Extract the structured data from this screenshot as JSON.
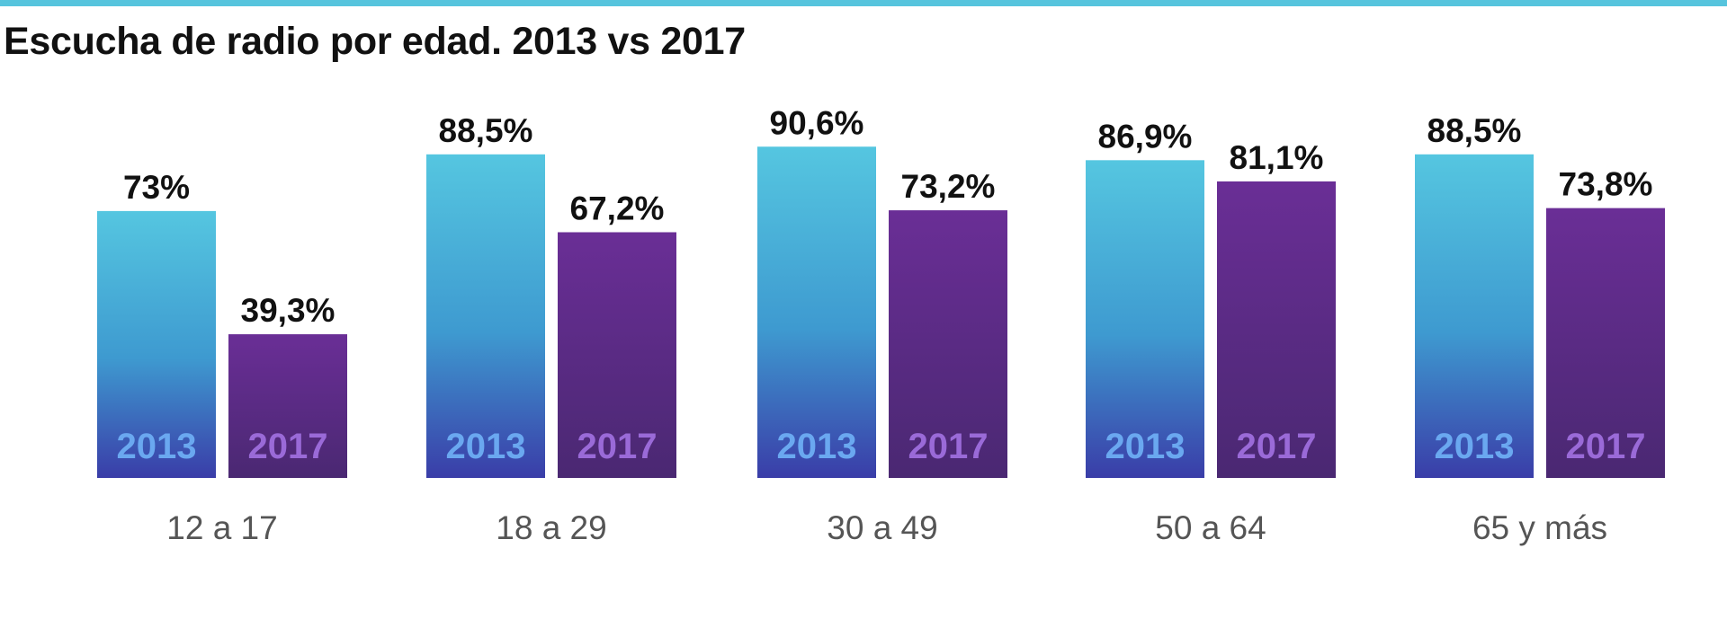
{
  "colors": {
    "accent_rule": "#56c4dd",
    "series_2013_top": "#55c6e0",
    "series_2013_bottom": "#3a3da8",
    "series_2013_label": "#6aa8f0",
    "series_2017_top": "#6a2e96",
    "series_2017_bottom": "#4a2872",
    "series_2017_label": "#9a6ad8"
  },
  "chart_data": {
    "type": "bar",
    "title": "Escucha de radio por edad. 2013 vs 2017",
    "categories": [
      "12 a 17",
      "18 a 29",
      "30 a 49",
      "50 a 64",
      "65 y más"
    ],
    "series": [
      {
        "name": "2013",
        "values": [
          73,
          88.5,
          90.6,
          86.9,
          88.5
        ],
        "labels": [
          "73%",
          "88,5%",
          "90,6%",
          "86,9%",
          "88,5%"
        ]
      },
      {
        "name": "2017",
        "values": [
          39.3,
          67.2,
          73.2,
          81.1,
          73.8
        ],
        "labels": [
          "39,3%",
          "67,2%",
          "73,2%",
          "81,1%",
          "73,8%"
        ]
      }
    ],
    "ylim": [
      0,
      100
    ],
    "grid": false,
    "xlabel": "",
    "ylabel": ""
  }
}
